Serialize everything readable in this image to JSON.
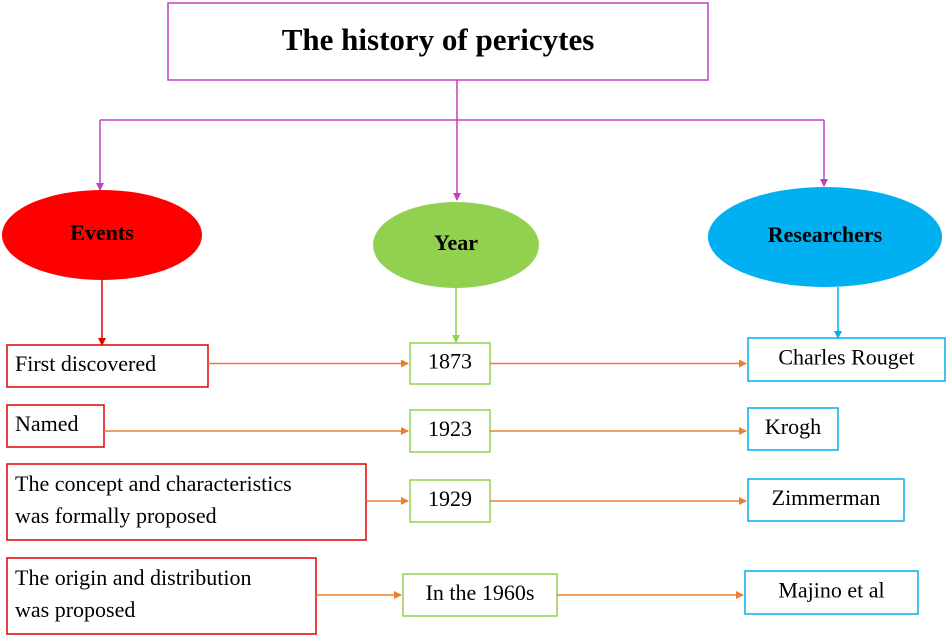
{
  "title": "The history of pericytes",
  "headers": {
    "events": "Events",
    "year": "Year",
    "researchers": "Researchers"
  },
  "rows": [
    {
      "event": [
        "First discovered"
      ],
      "year": "1873",
      "researcher": "Charles Rouget"
    },
    {
      "event": [
        "Named"
      ],
      "year": "1923",
      "researcher": "Krogh"
    },
    {
      "event": [
        "The concept and characteristics",
        "was formally proposed"
      ],
      "year": "1929",
      "researcher": "Zimmerman"
    },
    {
      "event": [
        "The origin and distribution",
        " was proposed"
      ],
      "year": "In the 1960s",
      "researcher": "Majino et al"
    }
  ]
}
